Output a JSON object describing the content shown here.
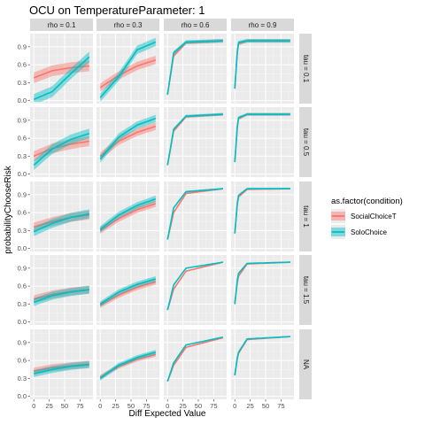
{
  "chart_data": {
    "type": "line",
    "title": "OCU on TemperatureParameter: 1",
    "xlabel": "Diff Expected Value",
    "ylabel": "probabilityChooseRisk",
    "xlim": [
      -6,
      96
    ],
    "ylim": [
      -0.05,
      1.12
    ],
    "x_ticks": [
      0,
      25,
      50,
      75
    ],
    "y_ticks": [
      0.0,
      0.3,
      0.6,
      0.9
    ],
    "y_tick_labels": [
      "0.0",
      "0.3",
      "0.6",
      "0.9"
    ],
    "grid": true,
    "col_facet_labels": [
      "rho = 0.1",
      "rho = 0.3",
      "rho = 0.6",
      "rho = 0.9"
    ],
    "row_facet_labels": [
      "tau = 0.1",
      "tau = 0.5",
      "tau = 1",
      "tau = 1.5",
      "NA"
    ],
    "legend": {
      "title": "as.factor(condition)",
      "position": "right",
      "entries": [
        {
          "name": "SocialChoiceT",
          "color": "#F8766D"
        },
        {
          "name": "SoloChoice",
          "color": "#00BFC4"
        }
      ]
    },
    "series_note": "ribbons of many simulated curves per condition; x from 0 to 90",
    "panels": [
      [
        {
          "SocialChoiceT": {
            "x": [
              0,
              30,
              60,
              90
            ],
            "y": [
              0.38,
              0.5,
              0.55,
              0.58
            ]
          },
          "SoloChoice": {
            "x": [
              0,
              30,
              60,
              90
            ],
            "y": [
              0.02,
              0.15,
              0.45,
              0.73
            ]
          }
        },
        {
          "SocialChoiceT": {
            "x": [
              0,
              30,
              60,
              90
            ],
            "y": [
              0.22,
              0.42,
              0.58,
              0.68
            ]
          },
          "SoloChoice": {
            "x": [
              0,
              30,
              60,
              90
            ],
            "y": [
              0.05,
              0.4,
              0.85,
              0.98
            ]
          }
        },
        {
          "SocialChoiceT": {
            "x": [
              0,
              10,
              30,
              90
            ],
            "y": [
              0.1,
              0.75,
              0.97,
              1.0
            ]
          },
          "SoloChoice": {
            "x": [
              0,
              10,
              30,
              90
            ],
            "y": [
              0.1,
              0.8,
              0.98,
              1.0
            ]
          }
        },
        {
          "SocialChoiceT": {
            "x": [
              0,
              5,
              20,
              90
            ],
            "y": [
              0.2,
              0.95,
              1.0,
              1.0
            ]
          },
          "SoloChoice": {
            "x": [
              0,
              5,
              20,
              90
            ],
            "y": [
              0.2,
              0.97,
              1.0,
              1.0
            ]
          }
        }
      ],
      [
        {
          "SocialChoiceT": {
            "x": [
              0,
              30,
              60,
              90
            ],
            "y": [
              0.3,
              0.43,
              0.5,
              0.55
            ]
          },
          "SoloChoice": {
            "x": [
              0,
              30,
              60,
              90
            ],
            "y": [
              0.15,
              0.42,
              0.58,
              0.68
            ]
          }
        },
        {
          "SocialChoiceT": {
            "x": [
              0,
              30,
              60,
              90
            ],
            "y": [
              0.3,
              0.55,
              0.7,
              0.8
            ]
          },
          "SoloChoice": {
            "x": [
              0,
              30,
              60,
              90
            ],
            "y": [
              0.25,
              0.62,
              0.82,
              0.93
            ]
          }
        },
        {
          "SocialChoiceT": {
            "x": [
              0,
              10,
              30,
              90
            ],
            "y": [
              0.15,
              0.72,
              0.96,
              1.0
            ]
          },
          "SoloChoice": {
            "x": [
              0,
              10,
              30,
              90
            ],
            "y": [
              0.15,
              0.75,
              0.97,
              1.0
            ]
          }
        },
        {
          "SocialChoiceT": {
            "x": [
              0,
              5,
              20,
              90
            ],
            "y": [
              0.2,
              0.92,
              1.0,
              1.0
            ]
          },
          "SoloChoice": {
            "x": [
              0,
              5,
              20,
              90
            ],
            "y": [
              0.2,
              0.94,
              1.0,
              1.0
            ]
          }
        }
      ],
      [
        {
          "SocialChoiceT": {
            "x": [
              0,
              30,
              60,
              90
            ],
            "y": [
              0.36,
              0.45,
              0.52,
              0.56
            ]
          },
          "SoloChoice": {
            "x": [
              0,
              30,
              60,
              90
            ],
            "y": [
              0.28,
              0.42,
              0.52,
              0.58
            ]
          }
        },
        {
          "SocialChoiceT": {
            "x": [
              0,
              30,
              60,
              90
            ],
            "y": [
              0.3,
              0.5,
              0.65,
              0.75
            ]
          },
          "SoloChoice": {
            "x": [
              0,
              30,
              60,
              90
            ],
            "y": [
              0.32,
              0.56,
              0.72,
              0.83
            ]
          }
        },
        {
          "SocialChoiceT": {
            "x": [
              0,
              10,
              30,
              90
            ],
            "y": [
              0.15,
              0.6,
              0.92,
              1.0
            ]
          },
          "SoloChoice": {
            "x": [
              0,
              10,
              30,
              90
            ],
            "y": [
              0.15,
              0.68,
              0.95,
              1.0
            ]
          }
        },
        {
          "SocialChoiceT": {
            "x": [
              0,
              5,
              20,
              90
            ],
            "y": [
              0.25,
              0.85,
              0.99,
              1.0
            ]
          },
          "SoloChoice": {
            "x": [
              0,
              5,
              20,
              90
            ],
            "y": [
              0.25,
              0.88,
              1.0,
              1.0
            ]
          }
        }
      ],
      [
        {
          "SocialChoiceT": {
            "x": [
              0,
              30,
              60,
              90
            ],
            "y": [
              0.38,
              0.46,
              0.51,
              0.54
            ]
          },
          "SoloChoice": {
            "x": [
              0,
              30,
              60,
              90
            ],
            "y": [
              0.33,
              0.44,
              0.5,
              0.54
            ]
          }
        },
        {
          "SocialChoiceT": {
            "x": [
              0,
              30,
              60,
              90
            ],
            "y": [
              0.28,
              0.45,
              0.58,
              0.67
            ]
          },
          "SoloChoice": {
            "x": [
              0,
              30,
              60,
              90
            ],
            "y": [
              0.3,
              0.5,
              0.63,
              0.72
            ]
          }
        },
        {
          "SocialChoiceT": {
            "x": [
              0,
              10,
              30,
              90
            ],
            "y": [
              0.2,
              0.55,
              0.85,
              1.0
            ]
          },
          "SoloChoice": {
            "x": [
              0,
              10,
              30,
              90
            ],
            "y": [
              0.2,
              0.62,
              0.9,
              1.0
            ]
          }
        },
        {
          "SocialChoiceT": {
            "x": [
              0,
              5,
              20,
              90
            ],
            "y": [
              0.3,
              0.75,
              0.97,
              1.0
            ]
          },
          "SoloChoice": {
            "x": [
              0,
              5,
              20,
              90
            ],
            "y": [
              0.3,
              0.8,
              0.98,
              1.0
            ]
          }
        }
      ],
      [
        {
          "SocialChoiceT": {
            "x": [
              0,
              30,
              60,
              90
            ],
            "y": [
              0.42,
              0.48,
              0.51,
              0.54
            ]
          },
          "SoloChoice": {
            "x": [
              0,
              30,
              60,
              90
            ],
            "y": [
              0.38,
              0.45,
              0.5,
              0.53
            ]
          }
        },
        {
          "SocialChoiceT": {
            "x": [
              0,
              30,
              60,
              90
            ],
            "y": [
              0.32,
              0.5,
              0.62,
              0.7
            ]
          },
          "SoloChoice": {
            "x": [
              0,
              30,
              60,
              90
            ],
            "y": [
              0.3,
              0.52,
              0.65,
              0.74
            ]
          }
        },
        {
          "SocialChoiceT": {
            "x": [
              0,
              10,
              30,
              90
            ],
            "y": [
              0.25,
              0.52,
              0.82,
              0.98
            ]
          },
          "SoloChoice": {
            "x": [
              0,
              10,
              30,
              90
            ],
            "y": [
              0.25,
              0.56,
              0.86,
              0.99
            ]
          }
        },
        {
          "SocialChoiceT": {
            "x": [
              0,
              5,
              20,
              90
            ],
            "y": [
              0.35,
              0.7,
              0.95,
              1.0
            ]
          },
          "SoloChoice": {
            "x": [
              0,
              5,
              20,
              90
            ],
            "y": [
              0.35,
              0.72,
              0.96,
              1.0
            ]
          }
        }
      ]
    ]
  }
}
